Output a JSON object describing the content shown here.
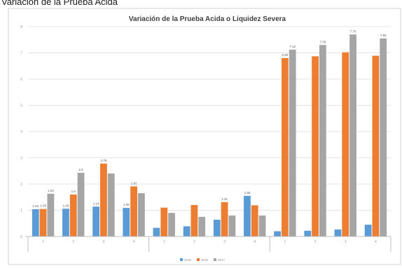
{
  "page_heading": "Variación de la Prueba Acida",
  "chart_data": {
    "type": "bar",
    "title": "Variación de la Prueba Acida o Liquidez Severa",
    "xlabel": "",
    "ylabel": "",
    "ylim": [
      0,
      8
    ],
    "y_ticks": [
      0,
      1,
      2,
      3,
      4,
      5,
      6,
      7,
      8
    ],
    "grid": true,
    "legend_position": "bottom",
    "groups": [
      {
        "label": "",
        "size": 4
      },
      {
        "label": "",
        "size": 4
      },
      {
        "label": "",
        "size": 4
      }
    ],
    "categories": [
      "1",
      "2",
      "3",
      "4",
      "1",
      "2",
      "3",
      "4",
      "1",
      "2",
      "3",
      "4"
    ],
    "series": [
      {
        "name": "2015",
        "color": "#5b9bd5",
        "values": [
          1.04,
          1.06,
          1.14,
          1.09,
          0.33,
          0.39,
          0.64,
          1.55,
          0.2,
          0.22,
          0.27,
          0.45
        ],
        "labels": [
          "1.04",
          "1.06",
          "1.14",
          "1.09",
          "",
          "",
          "",
          "1.55",
          "",
          "",
          "",
          ""
        ]
      },
      {
        "name": "2016",
        "color": "#ed7d31",
        "values": [
          1.05,
          1.6,
          2.78,
          1.91,
          1.1,
          1.2,
          1.31,
          1.19,
          6.8,
          6.87,
          7.02,
          6.89
        ],
        "labels": [
          "1.05",
          "1.6",
          "2.78",
          "1.91",
          "",
          "",
          "1.31",
          "",
          "6.80",
          "",
          "",
          ""
        ]
      },
      {
        "name": "2017",
        "color": "#a5a5a5",
        "values": [
          1.63,
          2.43,
          2.4,
          1.65,
          0.9,
          0.75,
          0.8,
          0.8,
          7.12,
          7.3,
          7.7,
          7.55
        ],
        "labels": [
          "1.63",
          "2.4",
          "",
          "",
          "",
          "",
          "",
          "",
          "7.12",
          "7.30",
          "7.70",
          "7.55"
        ]
      }
    ]
  }
}
